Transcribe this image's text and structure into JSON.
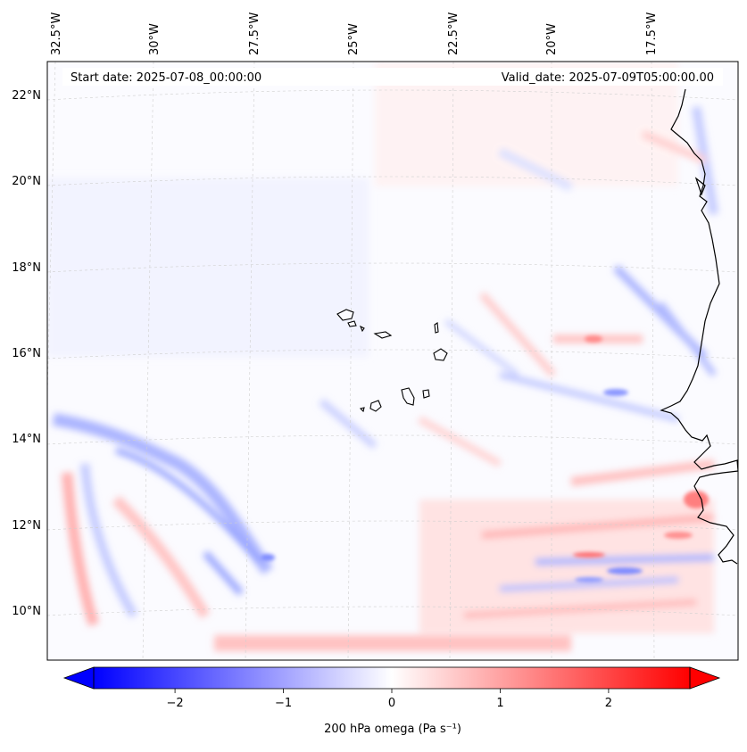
{
  "map": {
    "start_label": "Start date: 2025-07-08_00:00:00",
    "valid_label": "Valid_date: 2025-07-09T05:00:00.00",
    "lon_labels": [
      "32.5°W",
      "30°W",
      "27.5°W",
      "25°W",
      "22.5°W",
      "20°W",
      "17.5°W"
    ],
    "lat_labels": [
      "22°N",
      "20°N",
      "18°N",
      "16°N",
      "14°N",
      "12°N",
      "10°N"
    ]
  },
  "colorbar": {
    "label": "200 hPa omega (Pa s⁻¹)",
    "ticks": [
      "−2",
      "−1",
      "0",
      "1",
      "2"
    ],
    "tick_values": [
      -2,
      -1,
      0,
      1,
      2
    ],
    "range": [
      -2.75,
      2.75
    ],
    "colors": {
      "negative": "#0000ff",
      "zero": "#ffffff",
      "positive": "#ff0000"
    }
  }
}
